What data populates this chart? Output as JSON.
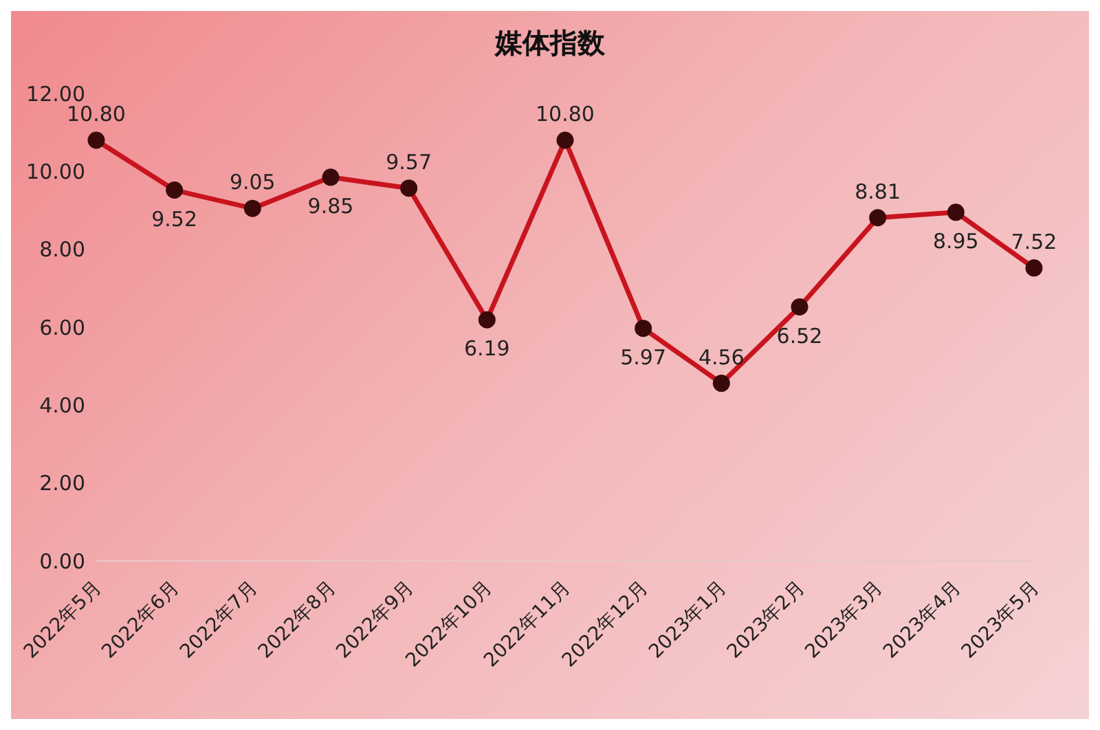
{
  "chart_data": {
    "type": "line",
    "title": "媒体指数",
    "categories": [
      "2022年5月",
      "2022年6月",
      "2022年7月",
      "2022年8月",
      "2022年9月",
      "2022年10月",
      "2022年11月",
      "2022年12月",
      "2023年1月",
      "2023年2月",
      "2023年3月",
      "2023年4月",
      "2023年5月"
    ],
    "series": [
      {
        "color": "#c8141e",
        "values": [
          10.8,
          9.52,
          9.05,
          9.85,
          9.57,
          6.19,
          10.8,
          5.97,
          4.56,
          6.52,
          8.81,
          8.95,
          7.52
        ],
        "value_labels": [
          "10.80",
          "9.52",
          "9.05",
          "9.85",
          "9.57",
          "6.19",
          "10.80",
          "5.97",
          "4.56",
          "6.52",
          "8.81",
          "8.95",
          "7.52"
        ]
      }
    ],
    "ylim": [
      0,
      12
    ],
    "yticks": [
      {
        "value": 0,
        "label": "0.00"
      },
      {
        "value": 2,
        "label": "2.00"
      },
      {
        "value": 4,
        "label": "4.00"
      },
      {
        "value": 6,
        "label": "6.00"
      },
      {
        "value": 8,
        "label": "8.00"
      },
      {
        "value": 10,
        "label": "10.00"
      },
      {
        "value": 12,
        "label": "12.00"
      }
    ],
    "grid": false,
    "legend": false,
    "marker": "circle",
    "line_style": "solid"
  }
}
